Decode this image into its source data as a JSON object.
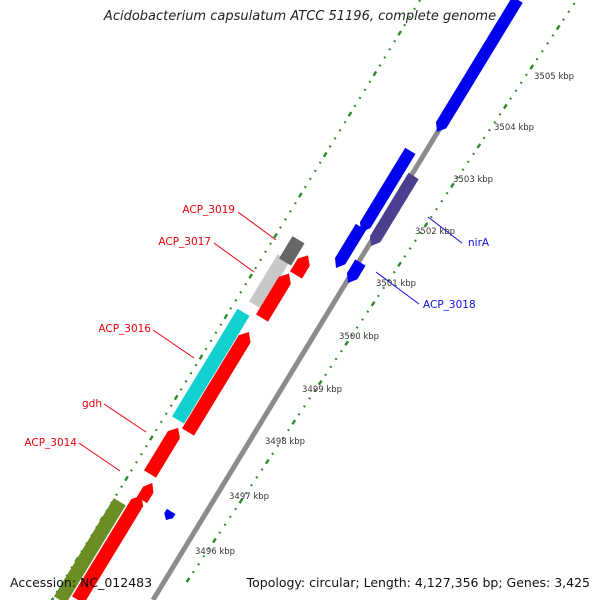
{
  "title": "Acidobacterium capsulatum ATCC 51196, complete genome",
  "accession": "Accession: NC_012483",
  "summary": "Topology: circular; Length: 4,127,356 bp; Genes: 3,425",
  "colors": {
    "backbone": "#8c8c8c",
    "tick_marks": "#2a8a2a",
    "kbp_label": "#333333",
    "gene_red": "#ff0000",
    "gene_blue": "#0000ee",
    "gene_slate": "#4b3f8f",
    "gene_cyan": "#10d0d0",
    "gene_olive": "#6a8e23",
    "gene_lightgray": "#c8c8c8",
    "gene_darkgray": "#666666",
    "label_red": "#e8000b",
    "label_blue": "#1010e0"
  },
  "kbp_ticks": [
    "3496 kbp",
    "3497 kbp",
    "3498 kbp",
    "3499 kbp",
    "3500 kbp",
    "3501 kbp",
    "3502 kbp",
    "3503 kbp",
    "3504 kbp",
    "3505 kbp"
  ],
  "gene_labels": [
    {
      "name": "ACP_3019",
      "color": "red"
    },
    {
      "name": "ACP_3017",
      "color": "red"
    },
    {
      "name": "ACP_3016",
      "color": "red"
    },
    {
      "name": "gdh",
      "color": "red"
    },
    {
      "name": "ACP_3014",
      "color": "red"
    },
    {
      "name": "nirA",
      "color": "blue"
    },
    {
      "name": "ACP_3018",
      "color": "blue"
    }
  ]
}
